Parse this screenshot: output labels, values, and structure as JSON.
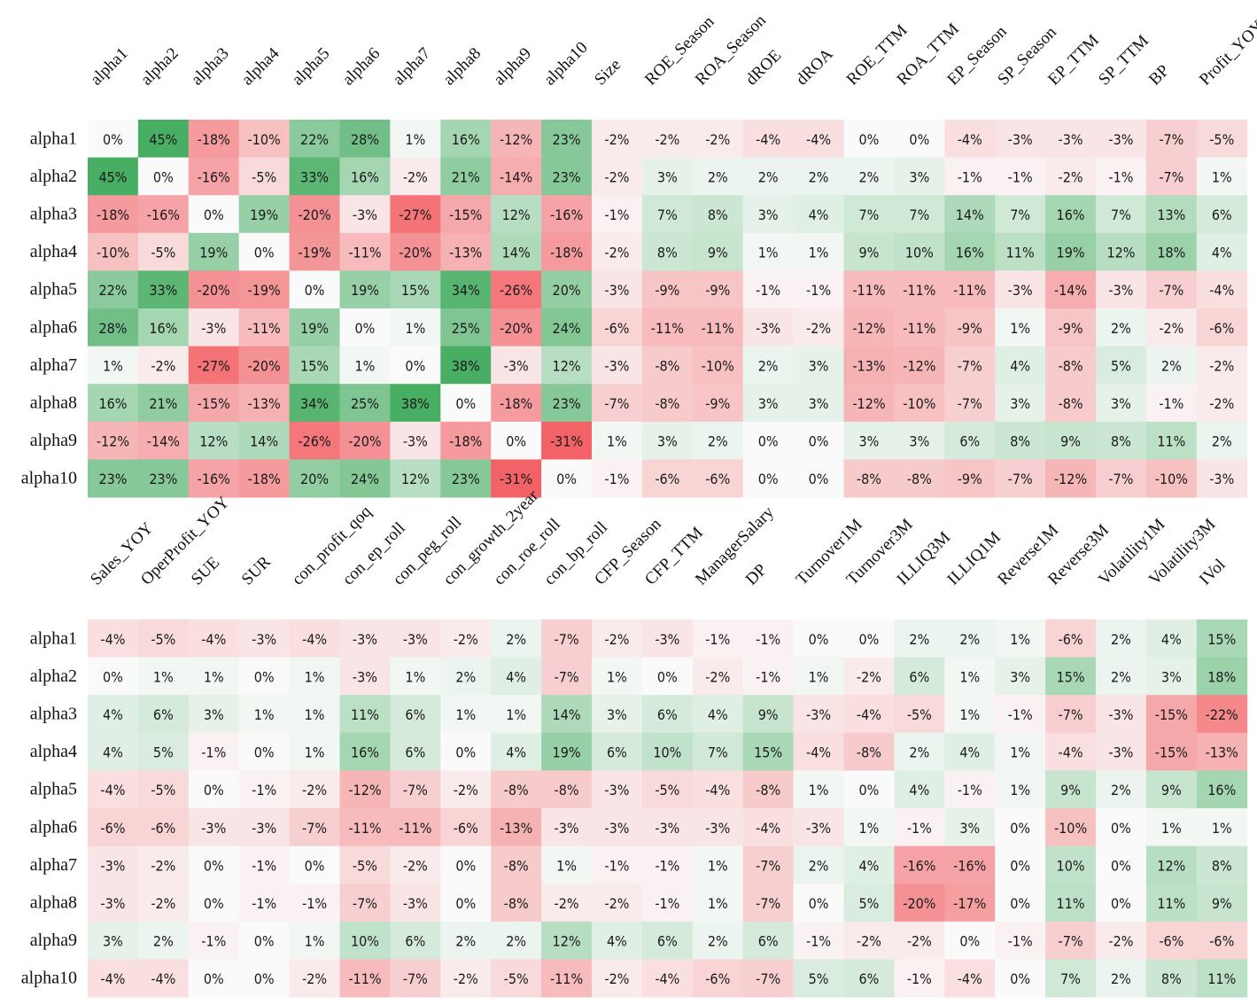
{
  "chart_data": {
    "type": "heatmap",
    "value_format": "percent",
    "colors": {
      "negative": "#f0454a",
      "zero": "#fafafa",
      "positive": "#3faa5c"
    },
    "color_scale_max": 38,
    "panels": [
      {
        "rows": [
          "alpha1",
          "alpha2",
          "alpha3",
          "alpha4",
          "alpha5",
          "alpha6",
          "alpha7",
          "alpha8",
          "alpha9",
          "alpha10"
        ],
        "columns": [
          "alpha1",
          "alpha2",
          "alpha3",
          "alpha4",
          "alpha5",
          "alpha6",
          "alpha7",
          "alpha8",
          "alpha9",
          "alpha10",
          "Size",
          "ROE_Season",
          "ROA_Season",
          "dROE",
          "dROA",
          "ROE_TTM",
          "ROA_TTM",
          "EP_Season",
          "SP_Season",
          "EP_TTM",
          "SP_TTM",
          "BP",
          "Profit_YOY"
        ],
        "values": [
          [
            0,
            45,
            -18,
            -10,
            22,
            28,
            1,
            16,
            -12,
            23,
            -2,
            -2,
            -2,
            -4,
            -4,
            0,
            0,
            -4,
            -3,
            -3,
            -3,
            -7,
            -5
          ],
          [
            45,
            0,
            -16,
            -5,
            33,
            16,
            -2,
            21,
            -14,
            23,
            -2,
            3,
            2,
            2,
            2,
            2,
            3,
            -1,
            -1,
            -2,
            -1,
            -7,
            1
          ],
          [
            -18,
            -16,
            0,
            19,
            -20,
            -3,
            -27,
            -15,
            12,
            -16,
            -1,
            7,
            8,
            3,
            4,
            7,
            7,
            14,
            7,
            16,
            7,
            13,
            6
          ],
          [
            -10,
            -5,
            19,
            0,
            -19,
            -11,
            -20,
            -13,
            14,
            -18,
            -2,
            8,
            9,
            1,
            1,
            9,
            10,
            16,
            11,
            19,
            12,
            18,
            4
          ],
          [
            22,
            33,
            -20,
            -19,
            0,
            19,
            15,
            34,
            -26,
            20,
            -3,
            -9,
            -9,
            -1,
            -1,
            -11,
            -11,
            -11,
            -3,
            -14,
            -3,
            -7,
            -4
          ],
          [
            28,
            16,
            -3,
            -11,
            19,
            0,
            1,
            25,
            -20,
            24,
            -6,
            -11,
            -11,
            -3,
            -2,
            -12,
            -11,
            -9,
            1,
            -9,
            2,
            -2,
            -6
          ],
          [
            1,
            -2,
            -27,
            -20,
            15,
            1,
            0,
            38,
            -3,
            12,
            -3,
            -8,
            -10,
            2,
            3,
            -13,
            -12,
            -7,
            4,
            -8,
            5,
            2,
            -2
          ],
          [
            16,
            21,
            -15,
            -13,
            34,
            25,
            38,
            0,
            -18,
            23,
            -7,
            -8,
            -9,
            3,
            3,
            -12,
            -10,
            -7,
            3,
            -8,
            3,
            -1,
            -2
          ],
          [
            -12,
            -14,
            12,
            14,
            -26,
            -20,
            -3,
            -18,
            0,
            -31,
            1,
            3,
            2,
            0,
            0,
            3,
            3,
            6,
            8,
            9,
            8,
            11,
            2
          ],
          [
            23,
            23,
            -16,
            -18,
            20,
            24,
            12,
            23,
            -31,
            0,
            -1,
            -6,
            -6,
            0,
            0,
            -8,
            -8,
            -9,
            -7,
            -12,
            -7,
            -10,
            -3
          ]
        ]
      },
      {
        "rows": [
          "alpha1",
          "alpha2",
          "alpha3",
          "alpha4",
          "alpha5",
          "alpha6",
          "alpha7",
          "alpha8",
          "alpha9",
          "alpha10"
        ],
        "columns": [
          "Sales_YOY",
          "OperProfit_YOY",
          "SUE",
          "SUR",
          "con_profit_qoq",
          "con_ep_roll",
          "con_peg_roll",
          "con_growth_2year",
          "con_roe_roll",
          "con_bp_roll",
          "CFP_Season",
          "CFP_TTM",
          "ManagerSalary",
          "DP",
          "Turnover1M",
          "Turnover3M",
          "ILLIQ3M",
          "ILLIQ1M",
          "Reverse1M",
          "Reverse3M",
          "Volatility1M",
          "Volatility3M",
          "IVol"
        ],
        "values": [
          [
            -4,
            -5,
            -4,
            -3,
            -4,
            -3,
            -3,
            -2,
            2,
            -7,
            -2,
            -3,
            -1,
            -1,
            0,
            0,
            2,
            2,
            1,
            -6,
            2,
            4,
            15
          ],
          [
            0,
            1,
            1,
            0,
            1,
            -3,
            1,
            2,
            4,
            -7,
            1,
            0,
            -2,
            -1,
            1,
            -2,
            6,
            1,
            3,
            15,
            2,
            3,
            18
          ],
          [
            4,
            6,
            3,
            1,
            1,
            11,
            6,
            1,
            1,
            14,
            3,
            6,
            4,
            9,
            -3,
            -4,
            -5,
            1,
            -1,
            -7,
            -3,
            -15,
            -22
          ],
          [
            4,
            5,
            -1,
            0,
            1,
            16,
            6,
            0,
            4,
            19,
            6,
            10,
            7,
            15,
            -4,
            -8,
            2,
            4,
            1,
            -4,
            -3,
            -15,
            -13
          ],
          [
            -4,
            -5,
            0,
            -1,
            -2,
            -12,
            -7,
            -2,
            -8,
            -8,
            -3,
            -5,
            -4,
            -8,
            1,
            0,
            4,
            -1,
            1,
            9,
            2,
            9,
            16
          ],
          [
            -6,
            -6,
            -3,
            -3,
            -7,
            -11,
            -11,
            -6,
            -13,
            -3,
            -3,
            -3,
            -3,
            -4,
            -3,
            1,
            -1,
            3,
            0,
            -10,
            0,
            1,
            1
          ],
          [
            -3,
            -2,
            0,
            -1,
            0,
            -5,
            -2,
            0,
            -8,
            1,
            -1,
            -1,
            1,
            -7,
            2,
            4,
            -16,
            -16,
            0,
            10,
            0,
            12,
            8
          ],
          [
            -3,
            -2,
            0,
            -1,
            -1,
            -7,
            -3,
            0,
            -8,
            -2,
            -2,
            -1,
            1,
            -7,
            0,
            5,
            -20,
            -17,
            0,
            11,
            0,
            11,
            9
          ],
          [
            3,
            2,
            -1,
            0,
            1,
            10,
            6,
            2,
            2,
            12,
            4,
            6,
            2,
            6,
            -1,
            -2,
            -2,
            0,
            -1,
            -7,
            -2,
            -6,
            -6
          ],
          [
            -4,
            -4,
            0,
            0,
            -2,
            -11,
            -7,
            -2,
            -5,
            -11,
            -2,
            -4,
            -6,
            -7,
            5,
            6,
            -1,
            -4,
            0,
            7,
            2,
            8,
            11
          ]
        ]
      }
    ]
  }
}
